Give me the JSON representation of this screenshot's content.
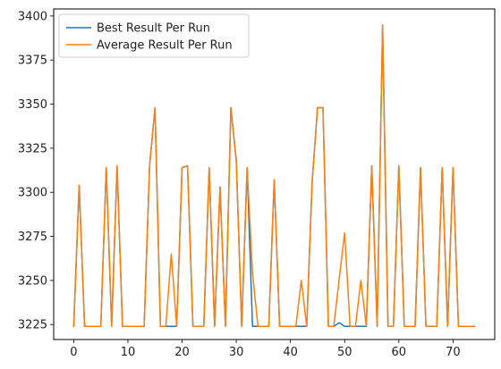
{
  "chart_data": {
    "type": "line",
    "title": "",
    "xlabel": "",
    "ylabel": "",
    "xlim": [
      -3.7,
      77.7
    ],
    "ylim": [
      3216.5,
      3404
    ],
    "grid": false,
    "legend_position": "top-left",
    "x_ticks": [
      0,
      10,
      20,
      30,
      40,
      50,
      60,
      70
    ],
    "y_ticks": [
      3225,
      3250,
      3275,
      3300,
      3325,
      3350,
      3375,
      3400
    ],
    "x": [
      0,
      1,
      2,
      3,
      4,
      5,
      6,
      7,
      8,
      9,
      10,
      11,
      12,
      13,
      14,
      15,
      16,
      17,
      18,
      19,
      20,
      21,
      22,
      23,
      24,
      25,
      26,
      27,
      28,
      29,
      30,
      31,
      32,
      33,
      34,
      35,
      36,
      37,
      38,
      39,
      40,
      41,
      42,
      43,
      44,
      45,
      46,
      47,
      48,
      49,
      50,
      51,
      52,
      53,
      54,
      55,
      56,
      57,
      58,
      59,
      60,
      61,
      62,
      63,
      64,
      65,
      66,
      67,
      68,
      69,
      70,
      71,
      72,
      73,
      74
    ],
    "series": [
      {
        "name": "Best Result Per Run",
        "color": "#1f77b4",
        "values": [
          3224,
          3304,
          3224,
          3224,
          3224,
          3224,
          3314,
          3224,
          3315,
          3224,
          3224,
          3224,
          3224,
          3224,
          3315,
          3348,
          3224,
          3224,
          3224,
          3224,
          3314,
          3315,
          3224,
          3224,
          3224,
          3314,
          3224,
          3303,
          3224,
          3348,
          3318,
          3224,
          3314,
          3224,
          3224,
          3224,
          3224,
          3307,
          3224,
          3224,
          3224,
          3224,
          3224,
          3224,
          3306,
          3348,
          3348,
          3224,
          3224,
          3226,
          3224,
          3224,
          3224,
          3224,
          3224,
          3315,
          3224,
          3395,
          3224,
          3224,
          3315,
          3224,
          3224,
          3224,
          3314,
          3224,
          3224,
          3224,
          3314,
          3224,
          3314,
          3224,
          3224,
          3224,
          3224
        ]
      },
      {
        "name": "Average Result Per Run",
        "color": "#ff7f0e",
        "values": [
          3224,
          3304,
          3224,
          3224,
          3224,
          3224,
          3314,
          3224,
          3315,
          3224,
          3224,
          3224,
          3224,
          3224,
          3315,
          3348,
          3224,
          3224,
          3265,
          3224,
          3314,
          3315,
          3224,
          3224,
          3224,
          3314,
          3224,
          3303,
          3224,
          3348,
          3318,
          3224,
          3314,
          3254,
          3224,
          3224,
          3224,
          3307,
          3224,
          3224,
          3224,
          3224,
          3250,
          3224,
          3306,
          3348,
          3348,
          3224,
          3224,
          3251,
          3277,
          3224,
          3224,
          3250,
          3224,
          3315,
          3224,
          3395,
          3224,
          3224,
          3315,
          3224,
          3224,
          3224,
          3314,
          3224,
          3224,
          3224,
          3314,
          3224,
          3314,
          3224,
          3224,
          3224,
          3224
        ]
      }
    ]
  }
}
